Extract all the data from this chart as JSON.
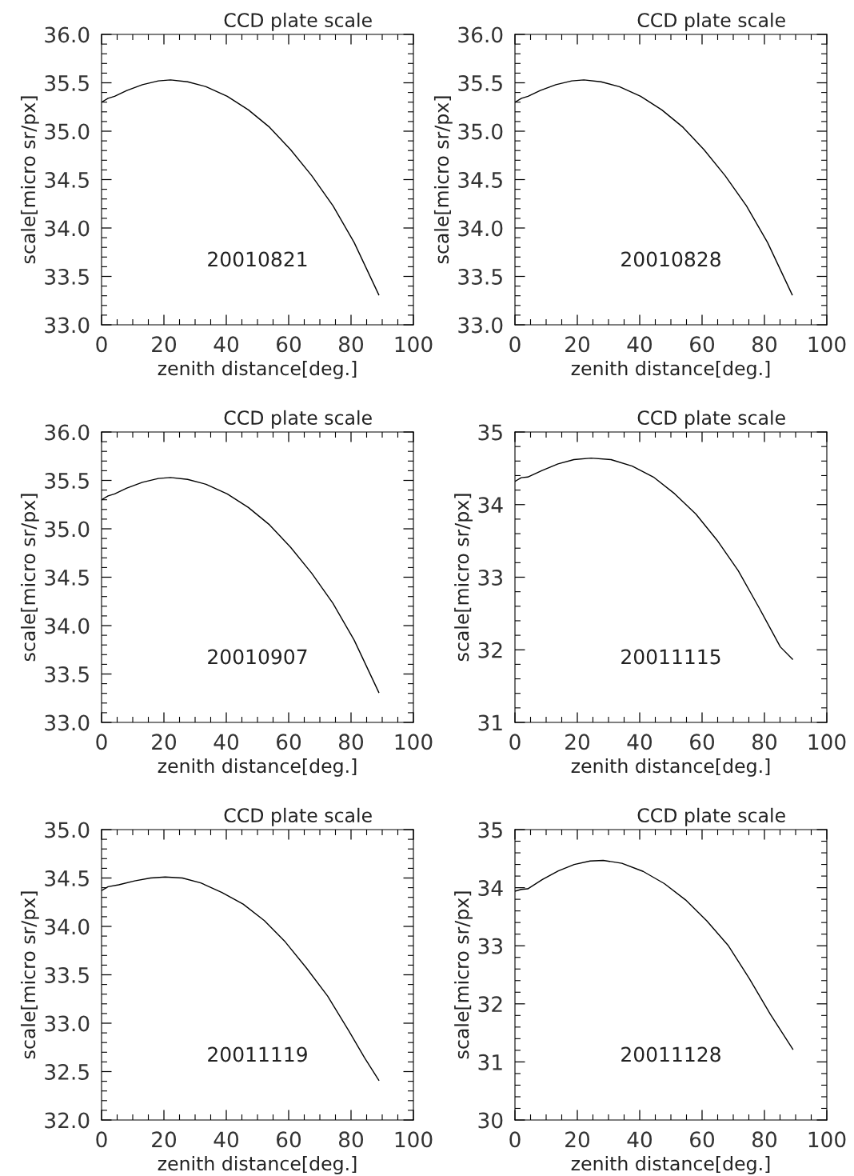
{
  "chart_data": [
    {
      "type": "line",
      "title": "CCD plate scale",
      "xlabel": "zenith distance[deg.]",
      "ylabel": "scale[micro sr/px]",
      "annotations": [
        "20010821"
      ],
      "xlim": [
        0,
        100
      ],
      "xticks": [
        0,
        20,
        40,
        60,
        80,
        100
      ],
      "ylim": [
        33.0,
        36.0
      ],
      "yticks": [
        {
          "value": 33,
          "label": "33.0"
        },
        33.5,
        {
          "value": 34,
          "label": "34.0"
        },
        34.5,
        {
          "value": 35,
          "label": "35.0"
        },
        35.5,
        {
          "value": 36,
          "label": "36.0"
        }
      ],
      "color": "#000000",
      "grid": false,
      "x": [
        0,
        2.1,
        4.2,
        8.1,
        13.1,
        18.2,
        22.1,
        27.6,
        33.5,
        40.3,
        47.1,
        53.9,
        60.6,
        67.4,
        74.2,
        81.0,
        88.9
      ],
      "values": [
        35.3,
        35.34,
        35.36,
        35.42,
        35.48,
        35.52,
        35.53,
        35.51,
        35.46,
        35.36,
        35.22,
        35.04,
        34.81,
        34.54,
        34.23,
        33.85,
        33.31
      ]
    },
    {
      "type": "line",
      "title": "CCD plate scale",
      "xlabel": "zenith distance[deg.]",
      "ylabel": "scale[micro sr/px]",
      "annotations": [
        "20010828"
      ],
      "xlim": [
        0,
        100
      ],
      "xticks": [
        0,
        20,
        40,
        60,
        80,
        100
      ],
      "ylim": [
        33.0,
        36.0
      ],
      "yticks": [
        {
          "value": 33,
          "label": "33.0"
        },
        33.5,
        {
          "value": 34,
          "label": "34.0"
        },
        34.5,
        {
          "value": 35,
          "label": "35.0"
        },
        35.5,
        {
          "value": 36,
          "label": "36.0"
        }
      ],
      "color": "#000000",
      "grid": false,
      "x": [
        0,
        2.1,
        4.2,
        8.1,
        13.1,
        18.2,
        22.1,
        27.6,
        33.5,
        40.3,
        47.1,
        53.9,
        60.6,
        67.4,
        74.2,
        81.0,
        88.9
      ],
      "values": [
        35.3,
        35.34,
        35.36,
        35.42,
        35.48,
        35.52,
        35.53,
        35.51,
        35.46,
        35.36,
        35.22,
        35.04,
        34.81,
        34.54,
        34.23,
        33.85,
        33.31
      ]
    },
    {
      "type": "line",
      "title": "CCD plate scale",
      "xlabel": "zenith distance[deg.]",
      "ylabel": "scale[micro sr/px]",
      "annotations": [
        "20010907"
      ],
      "xlim": [
        0,
        100
      ],
      "xticks": [
        0,
        20,
        40,
        60,
        80,
        100
      ],
      "ylim": [
        33.0,
        36.0
      ],
      "yticks": [
        {
          "value": 33,
          "label": "33.0"
        },
        33.5,
        {
          "value": 34,
          "label": "34.0"
        },
        34.5,
        {
          "value": 35,
          "label": "35.0"
        },
        35.5,
        {
          "value": 36,
          "label": "36.0"
        }
      ],
      "color": "#000000",
      "grid": false,
      "x": [
        0,
        2.1,
        4.2,
        8.1,
        13.1,
        18.2,
        22.1,
        27.6,
        33.5,
        40.3,
        47.1,
        53.9,
        60.6,
        67.4,
        74.2,
        81.0,
        88.9
      ],
      "values": [
        35.3,
        35.34,
        35.36,
        35.42,
        35.48,
        35.52,
        35.53,
        35.51,
        35.46,
        35.36,
        35.22,
        35.04,
        34.81,
        34.54,
        34.23,
        33.85,
        33.31
      ]
    },
    {
      "type": "line",
      "title": "CCD plate scale",
      "xlabel": "zenith distance[deg.]",
      "ylabel": "scale[micro sr/px]",
      "annotations": [
        "20011115"
      ],
      "xlim": [
        0,
        100
      ],
      "xticks": [
        0,
        20,
        40,
        60,
        80,
        100
      ],
      "ylim": [
        31,
        35
      ],
      "yticks": [
        31,
        32,
        33,
        34,
        35
      ],
      "color": "#000000",
      "grid": false,
      "x": [
        0,
        2.0,
        4.1,
        8.7,
        13.8,
        18.9,
        24.4,
        30.8,
        37.6,
        44.4,
        51.2,
        58.0,
        64.8,
        71.6,
        78.4,
        85.1,
        89.0
      ],
      "values": [
        34.32,
        34.37,
        34.38,
        34.47,
        34.56,
        34.62,
        34.64,
        34.62,
        34.53,
        34.38,
        34.15,
        33.87,
        33.51,
        33.09,
        32.57,
        32.04,
        31.87
      ]
    },
    {
      "type": "line",
      "title": "CCD plate scale",
      "xlabel": "zenith distance[deg.]",
      "ylabel": "scale[micro sr/px]",
      "annotations": [
        "20011119"
      ],
      "xlim": [
        0,
        100
      ],
      "xticks": [
        0,
        20,
        40,
        60,
        80,
        100
      ],
      "ylim": [
        32.0,
        35.0
      ],
      "yticks": [
        {
          "value": 32,
          "label": "32.0"
        },
        32.5,
        {
          "value": 33,
          "label": "33.0"
        },
        33.5,
        {
          "value": 34,
          "label": "34.0"
        },
        34.5,
        {
          "value": 35,
          "label": "35.0"
        }
      ],
      "color": "#000000",
      "grid": false,
      "x": [
        0,
        2.1,
        5.5,
        10.6,
        15.7,
        20.4,
        25.9,
        31.8,
        38.6,
        45.4,
        52.2,
        58.9,
        65.7,
        72.5,
        79.3,
        84.4,
        88.9
      ],
      "values": [
        34.37,
        34.41,
        34.43,
        34.47,
        34.5,
        34.51,
        34.5,
        34.45,
        34.35,
        34.23,
        34.06,
        33.84,
        33.57,
        33.28,
        32.92,
        32.64,
        32.41
      ]
    },
    {
      "type": "line",
      "title": "CCD plate scale",
      "xlabel": "zenith distance[deg.]",
      "ylabel": "scale[micro sr/px]",
      "annotations": [
        "20011128"
      ],
      "xlim": [
        0,
        100
      ],
      "xticks": [
        0,
        20,
        40,
        60,
        80,
        100
      ],
      "ylim": [
        30,
        35
      ],
      "yticks": [
        30,
        31,
        32,
        33,
        34,
        35
      ],
      "color": "#000000",
      "grid": false,
      "x": [
        0,
        2.0,
        4.1,
        8.8,
        13.9,
        19.0,
        24.1,
        28.3,
        34.3,
        41.1,
        47.9,
        54.7,
        61.5,
        68.3,
        75.1,
        81.9,
        89.1
      ],
      "values": [
        33.94,
        33.97,
        33.98,
        34.14,
        34.29,
        34.4,
        34.46,
        34.47,
        34.42,
        34.28,
        34.07,
        33.79,
        33.43,
        33.01,
        32.44,
        31.82,
        31.22
      ]
    }
  ]
}
